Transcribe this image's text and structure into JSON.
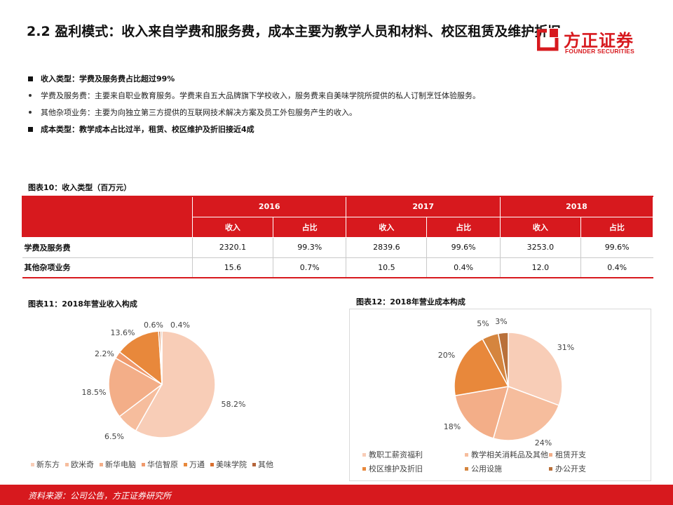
{
  "header": {
    "title": "2.2 盈利模式：收入来自学费和服务费，成本主要为教学人员和材料、校区租赁及维护折旧",
    "logo_cn": "方正证券",
    "logo_en": "FOUNDER SECURITIES"
  },
  "bullets": [
    {
      "style": "square",
      "text": "收入类型：学费及服务费占比超过99%"
    },
    {
      "style": "dot",
      "text": "学费及服务费：主要来自职业教育服务。学费来自五大品牌旗下学校收入，服务费来自美味学院所提供的私人订制烹饪体验服务。"
    },
    {
      "style": "dot",
      "text": "其他杂项业务：主要为向独立第三方提供的互联网技术解决方案及员工外包服务产生的收入。"
    },
    {
      "style": "square",
      "text": "成本类型：教学成本占比过半，租赁、校区维护及折旧接近4成"
    }
  ],
  "table": {
    "title": "图表10：收入类型（百万元）",
    "years": [
      "2016",
      "2017",
      "2018"
    ],
    "subheaders": [
      "收入",
      "占比"
    ],
    "rows": [
      {
        "label": "学费及服务费",
        "cells": [
          "2320.1",
          "99.3%",
          "2839.6",
          "99.6%",
          "3253.0",
          "99.6%"
        ]
      },
      {
        "label": "其他杂项业务",
        "cells": [
          "15.6",
          "0.7%",
          "10.5",
          "0.4%",
          "12.0",
          "0.4%"
        ]
      }
    ]
  },
  "chart_data": [
    {
      "type": "pie",
      "title": "图表11：2018年营业收入构成",
      "categories": [
        "新东方",
        "欧米奇",
        "新华电脑",
        "华信智原",
        "万通",
        "美味学院",
        "其他"
      ],
      "values": [
        58.2,
        6.5,
        18.5,
        2.2,
        13.6,
        0.6,
        0.4
      ],
      "labels": [
        "58.2%",
        "6.5%",
        "18.5%",
        "2.2%",
        "13.6%",
        "0.6%",
        "0.4%"
      ],
      "colors": [
        "#f8cdb7",
        "#f6bd9d",
        "#f3ae88",
        "#f09a6c",
        "#e8883b",
        "#d96f2e",
        "#b5653a"
      ],
      "legend": "bottom"
    },
    {
      "type": "pie",
      "title": "图表12：2018年营业成本构成",
      "categories": [
        "教职工薪资福利",
        "教学相关消耗品及其他",
        "租赁开支",
        "校区维护及折旧",
        "公用设施",
        "办公开支"
      ],
      "values": [
        31,
        24,
        18,
        20,
        5,
        3
      ],
      "labels": [
        "31%",
        "24%",
        "18%",
        "20%",
        "5%",
        "3%"
      ],
      "colors": [
        "#f8cdb7",
        "#f6bd9d",
        "#f3ae88",
        "#e8883b",
        "#d5853e",
        "#b9703a"
      ],
      "legend": "bottom"
    }
  ],
  "footer": {
    "source": "资料来源：公司公告，方正证券研究所"
  }
}
